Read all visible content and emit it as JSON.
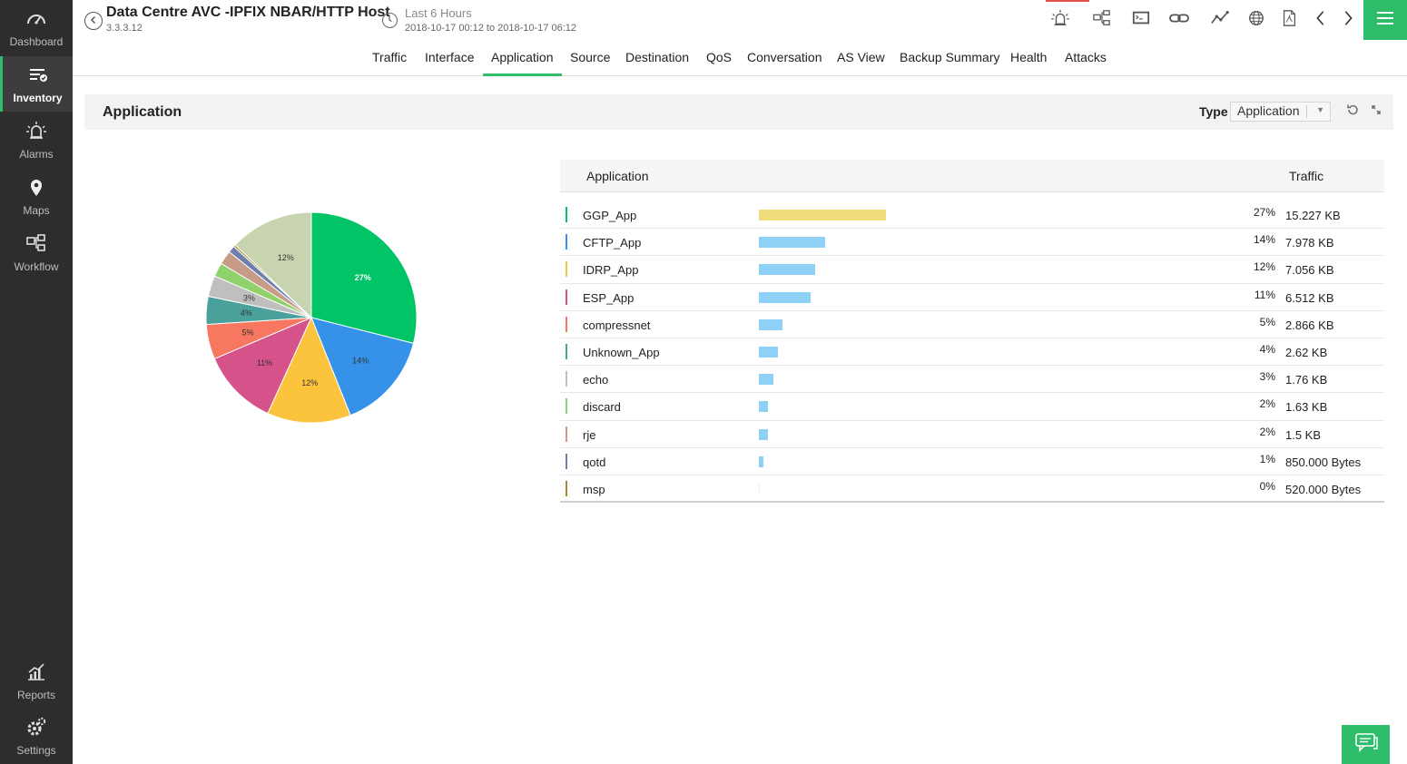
{
  "sidebar": {
    "items": [
      {
        "label": "Dashboard",
        "icon": "dashboard-icon"
      },
      {
        "label": "Inventory",
        "icon": "inventory-icon",
        "active": true
      },
      {
        "label": "Alarms",
        "icon": "alarm-icon"
      },
      {
        "label": "Maps",
        "icon": "map-pin-icon"
      },
      {
        "label": "Workflow",
        "icon": "workflow-icon"
      },
      {
        "label": "Reports",
        "icon": "reports-icon"
      },
      {
        "label": "Settings",
        "icon": "settings-icon"
      }
    ]
  },
  "header": {
    "device_name": "Data Centre AVC -IPFIX NBAR/HTTP Host",
    "device_ip": "3.3.3.12",
    "time_range_label": "Last 6 Hours",
    "time_range_dates": "2018-10-17 00:12 to 2018-10-17 06:12"
  },
  "toolbar": [
    "alarm-icon",
    "topology-icon",
    "terminal-icon",
    "link-icon",
    "graph-icon",
    "globe-icon",
    "pdf-icon",
    "chevron-left-icon",
    "chevron-right-icon"
  ],
  "tabs": [
    "Traffic",
    "Interface",
    "Application",
    "Source",
    "Destination",
    "QoS",
    "Conversation",
    "AS View",
    "Backup Summary",
    "Health",
    "Attacks"
  ],
  "active_tab": "Application",
  "panel": {
    "title": "Application",
    "type_label": "Type",
    "type_value": "Application"
  },
  "table": {
    "col_application": "Application",
    "col_traffic": "Traffic"
  },
  "chart_data": {
    "type": "pie",
    "slices": [
      {
        "name": "GGP_App",
        "percent": 27,
        "label": "27%",
        "color": "#00c465",
        "bar_color": "#f0dc7a",
        "traffic": "15.227 KB"
      },
      {
        "name": "CFTP_App",
        "percent": 14,
        "label": "14%",
        "color": "#3592e8",
        "bar_color": "#8ed0f6",
        "traffic": "7.978 KB"
      },
      {
        "name": "IDRP_App",
        "percent": 12,
        "label": "12%",
        "color": "#fcc33d",
        "bar_color": "#8ed0f6",
        "traffic": "7.056 KB"
      },
      {
        "name": "ESP_App",
        "percent": 11,
        "label": "11%",
        "color": "#d6528a",
        "bar_color": "#8ed0f6",
        "traffic": "6.512 KB"
      },
      {
        "name": "compressnet",
        "percent": 5,
        "label": "5%",
        "color": "#f87760",
        "bar_color": "#8ed0f6",
        "traffic": "2.866 KB"
      },
      {
        "name": "Unknown_App",
        "percent": 4,
        "label": "4%",
        "color": "#4aa19c",
        "bar_color": "#8ed0f6",
        "traffic": "2.62 KB"
      },
      {
        "name": "echo",
        "percent": 3,
        "label": "3%",
        "color": "#bfbfbf",
        "bar_color": "#8ed0f6",
        "traffic": "1.76 KB"
      },
      {
        "name": "discard",
        "percent": 2,
        "label": "2%",
        "color": "#8fd16a",
        "bar_color": "#8ed0f6",
        "traffic": "1.63 KB"
      },
      {
        "name": "rje",
        "percent": 2,
        "label": "2%",
        "color": "#c79b88",
        "bar_color": "#8ed0f6",
        "traffic": "1.5 KB"
      },
      {
        "name": "qotd",
        "percent": 1,
        "label": "1%",
        "color": "#6d7fad",
        "bar_color": "#8ed0f6",
        "traffic": "850.000 Bytes"
      },
      {
        "name": "msp",
        "percent": 0,
        "label": "0%",
        "color": "#a38a2c",
        "bar_color": "#8ed0f6",
        "traffic": "520.000 Bytes"
      },
      {
        "name": "",
        "percent": 12,
        "label": "12%",
        "color": "#c8d4b0"
      }
    ]
  }
}
